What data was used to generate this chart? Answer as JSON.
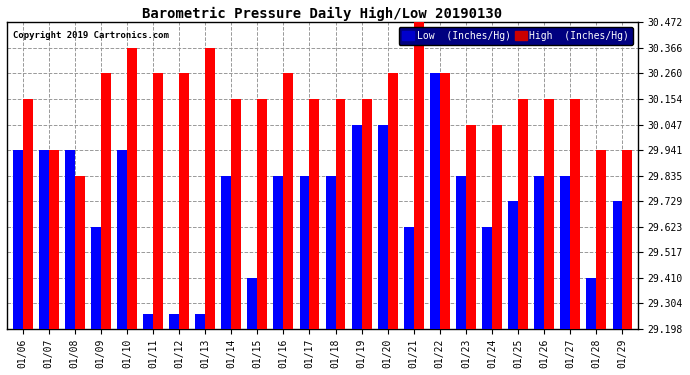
{
  "title": "Barometric Pressure Daily High/Low 20190130",
  "copyright": "Copyright 2019 Cartronics.com",
  "ylabel_low": "Low  (Inches/Hg)",
  "ylabel_high": "High  (Inches/Hg)",
  "dates": [
    "01/06",
    "01/07",
    "01/08",
    "01/09",
    "01/10",
    "01/11",
    "01/12",
    "01/13",
    "01/14",
    "01/15",
    "01/16",
    "01/17",
    "01/18",
    "01/19",
    "01/20",
    "01/21",
    "01/22",
    "01/23",
    "01/24",
    "01/25",
    "01/26",
    "01/27",
    "01/28",
    "01/29"
  ],
  "low": [
    29.941,
    29.941,
    29.941,
    29.623,
    29.941,
    29.26,
    29.26,
    29.26,
    29.835,
    29.41,
    29.835,
    29.835,
    29.835,
    30.047,
    30.047,
    29.623,
    30.26,
    29.835,
    29.623,
    29.729,
    29.835,
    29.835,
    29.41,
    29.729
  ],
  "high": [
    30.154,
    29.941,
    29.835,
    30.26,
    30.366,
    30.26,
    30.26,
    30.366,
    30.154,
    30.154,
    30.26,
    30.154,
    30.154,
    30.154,
    30.26,
    30.472,
    30.26,
    30.047,
    30.047,
    30.154,
    30.154,
    30.154,
    29.941,
    29.941
  ],
  "ylim_low": 29.198,
  "ylim_high": 30.472,
  "yticks": [
    29.198,
    29.304,
    29.41,
    29.517,
    29.623,
    29.729,
    29.835,
    29.941,
    30.047,
    30.154,
    30.26,
    30.366,
    30.472
  ],
  "low_color": "#0000ff",
  "high_color": "#ff0000",
  "bg_color": "#ffffff",
  "grid_color": "#999999",
  "title_color": "#000000",
  "copyright_color": "#000000"
}
